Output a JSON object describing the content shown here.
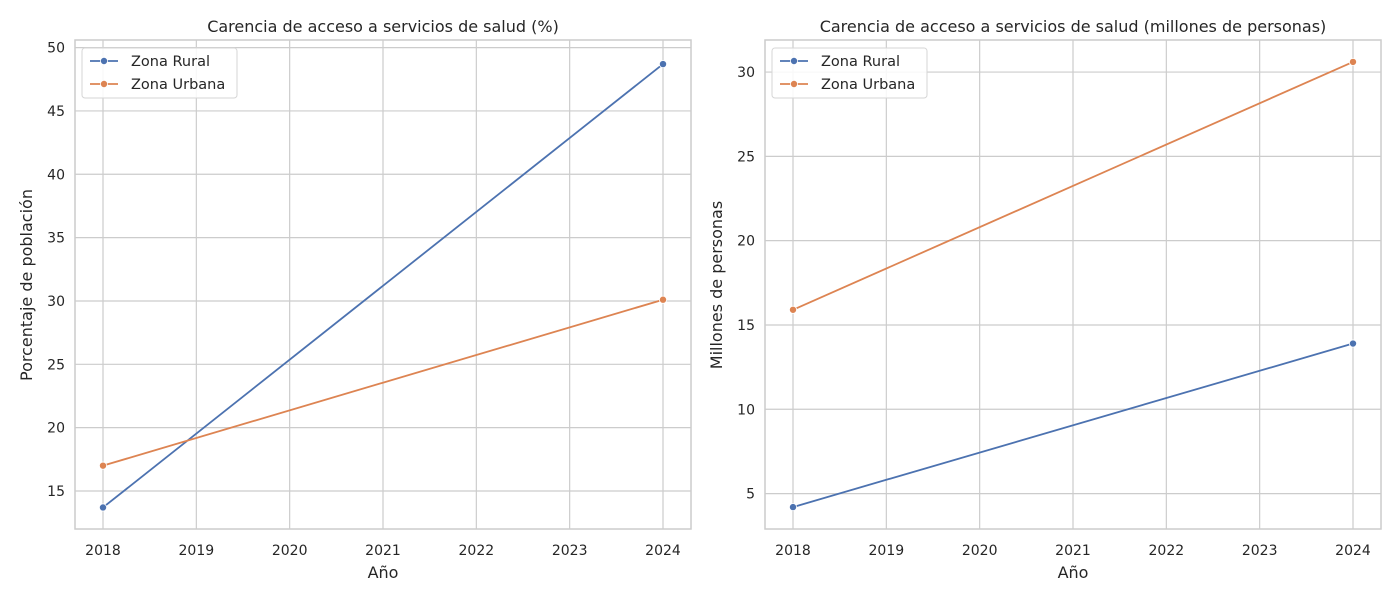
{
  "colors": {
    "rural": "#4c72b0",
    "urbana": "#dd8452",
    "grid": "#cccccc",
    "frame": "#cccccc"
  },
  "chart_data": [
    {
      "type": "line",
      "title": "Carencia de acceso a servicios de salud (%)",
      "xlabel": "Año",
      "ylabel": "Porcentaje de población",
      "x": [
        2018,
        2024
      ],
      "xticks": [
        "2018",
        "2019",
        "2020",
        "2021",
        "2022",
        "2023",
        "2024"
      ],
      "yticks": [
        "15",
        "20",
        "25",
        "30",
        "35",
        "40",
        "45",
        "50"
      ],
      "xlim": [
        2017.7,
        2024.3
      ],
      "ylim": [
        12.0,
        50.6
      ],
      "grid": true,
      "legend": "upper left",
      "series": [
        {
          "name": "Zona Rural",
          "values": [
            13.7,
            48.7
          ]
        },
        {
          "name": "Zona Urbana",
          "values": [
            17.0,
            30.1
          ]
        }
      ]
    },
    {
      "type": "line",
      "title": "Carencia de acceso a servicios de salud (millones de personas)",
      "xlabel": "Año",
      "ylabel": "Millones de personas",
      "x": [
        2018,
        2024
      ],
      "xticks": [
        "2018",
        "2019",
        "2020",
        "2021",
        "2022",
        "2023",
        "2024"
      ],
      "yticks": [
        "5",
        "10",
        "15",
        "20",
        "25",
        "30"
      ],
      "xlim": [
        2017.7,
        2024.3
      ],
      "ylim": [
        2.9,
        31.9
      ],
      "grid": true,
      "legend": "upper left",
      "series": [
        {
          "name": "Zona Rural",
          "values": [
            4.2,
            13.9
          ]
        },
        {
          "name": "Zona Urbana",
          "values": [
            15.9,
            30.6
          ]
        }
      ]
    }
  ]
}
